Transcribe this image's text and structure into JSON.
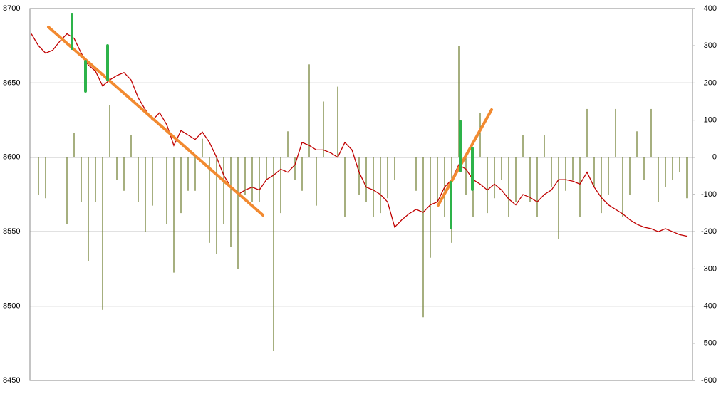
{
  "chart_data": {
    "type": "line",
    "ylim": [
      8450,
      8700
    ],
    "yticks": [
      8450,
      8500,
      8550,
      8600,
      8650,
      8700
    ],
    "y2lim": [
      -600,
      400
    ],
    "y2ticks": [
      -600,
      -500,
      -400,
      -300,
      -200,
      -100,
      0,
      100,
      200,
      300,
      400
    ],
    "grid": true,
    "series": [
      {
        "color": "#c00000",
        "values": [
          8683,
          8675,
          8670,
          8672,
          8678,
          8683,
          8680,
          8670,
          8662,
          8658,
          8648,
          8652,
          8655,
          8657,
          8652,
          8640,
          8632,
          8625,
          8630,
          8622,
          8608,
          8618,
          8615,
          8612,
          8617,
          8610,
          8600,
          8588,
          8580,
          8575,
          8578,
          8580,
          8578,
          8585,
          8588,
          8592,
          8590,
          8595,
          8610,
          8608,
          8605,
          8605,
          8603,
          8600,
          8610,
          8605,
          8590,
          8580,
          8578,
          8575,
          8570,
          8553,
          8558,
          8562,
          8565,
          8563,
          8568,
          8570,
          8580,
          8585,
          8595,
          8592,
          8585,
          8582,
          8578,
          8582,
          8578,
          8572,
          8568,
          8575,
          8573,
          8570,
          8575,
          8578,
          8585,
          8585,
          8584,
          8582,
          8590,
          8580,
          8573,
          8568,
          8565,
          8562,
          8558,
          8555,
          8553,
          8552,
          8550,
          8552,
          8550,
          8548,
          8547
        ]
      },
      {
        "type": "bar",
        "axis": "y2",
        "color": "#6b7a2a",
        "values": [
          null,
          -100,
          -110,
          null,
          null,
          -180,
          65,
          -120,
          -280,
          -120,
          -410,
          140,
          -60,
          -90,
          60,
          -120,
          -200,
          -130,
          null,
          -180,
          -310,
          -150,
          -90,
          -90,
          50,
          -230,
          -260,
          -180,
          -240,
          -300,
          -100,
          -120,
          -120,
          -60,
          -520,
          -150,
          70,
          -60,
          -90,
          250,
          -130,
          150,
          null,
          190,
          -160,
          null,
          -100,
          -120,
          -160,
          -150,
          -110,
          -60,
          null,
          null,
          -90,
          -430,
          -270,
          -120,
          -160,
          -230,
          300,
          -100,
          -160,
          120,
          -150,
          -110,
          -60,
          -160,
          -120,
          60,
          -120,
          -160,
          60,
          -80,
          -220,
          -90,
          -60,
          -160,
          130,
          -80,
          -150,
          -100,
          130,
          -160,
          -100,
          70,
          -60,
          130,
          -120,
          -80,
          -60,
          -40,
          -110
        ]
      }
    ]
  }
}
